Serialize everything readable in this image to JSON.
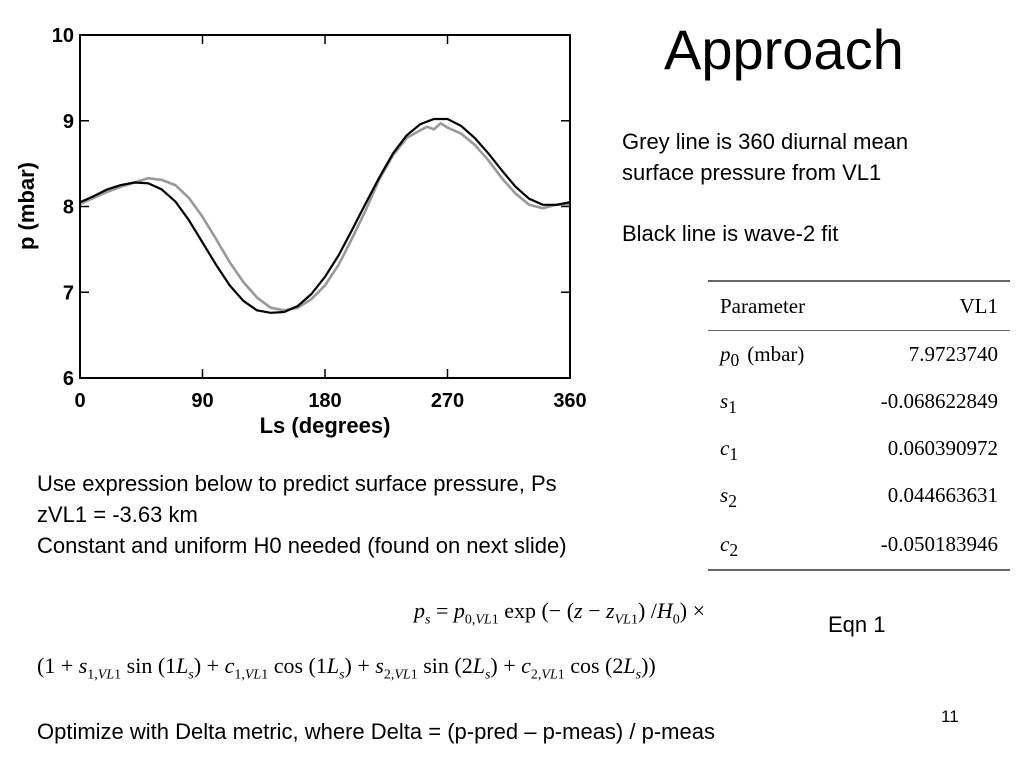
{
  "title": "Approach",
  "notes": {
    "grey": [
      "Grey line is 360 diurnal mean",
      "surface pressure from VL1"
    ],
    "black": "Black line is wave-2 fit"
  },
  "chart_data": {
    "type": "line",
    "xlabel": "Ls (degrees)",
    "ylabel": "p (mbar)",
    "xlim": [
      0,
      360
    ],
    "ylim": [
      6,
      10
    ],
    "xticks": [
      0,
      90,
      180,
      270,
      360
    ],
    "yticks": [
      6,
      7,
      8,
      9,
      10
    ],
    "series": [
      {
        "color": "#999999",
        "x": [
          0,
          10,
          20,
          30,
          40,
          50,
          60,
          70,
          80,
          90,
          100,
          110,
          120,
          130,
          140,
          150,
          160,
          170,
          180,
          190,
          200,
          210,
          220,
          230,
          240,
          250,
          255,
          260,
          265,
          270,
          280,
          290,
          300,
          310,
          320,
          330,
          340,
          350,
          360
        ],
        "y": [
          8.03,
          8.1,
          8.17,
          8.23,
          8.28,
          8.33,
          8.31,
          8.25,
          8.1,
          7.88,
          7.62,
          7.35,
          7.12,
          6.94,
          6.82,
          6.79,
          6.82,
          6.92,
          7.08,
          7.32,
          7.63,
          7.96,
          8.32,
          8.6,
          8.8,
          8.89,
          8.93,
          8.9,
          8.97,
          8.92,
          8.85,
          8.72,
          8.54,
          8.33,
          8.15,
          8.02,
          7.98,
          8.02,
          8.03
        ]
      },
      {
        "color": "#000000",
        "x": [
          0,
          10,
          20,
          30,
          40,
          50,
          60,
          70,
          80,
          90,
          100,
          110,
          120,
          130,
          140,
          150,
          160,
          170,
          180,
          190,
          200,
          210,
          220,
          230,
          240,
          250,
          260,
          270,
          280,
          290,
          300,
          310,
          320,
          330,
          340,
          350,
          360
        ],
        "y": [
          8.05,
          8.12,
          8.2,
          8.25,
          8.28,
          8.27,
          8.2,
          8.06,
          7.84,
          7.58,
          7.32,
          7.08,
          6.9,
          6.79,
          6.76,
          6.77,
          6.84,
          6.98,
          7.18,
          7.43,
          7.73,
          8.04,
          8.34,
          8.62,
          8.83,
          8.96,
          9.02,
          9.02,
          8.94,
          8.8,
          8.62,
          8.42,
          8.23,
          8.09,
          8.02,
          8.02,
          8.05
        ]
      }
    ]
  },
  "text_block": [
    "Use expression below to predict surface pressure, Ps",
    "zVL1 = -3.63 km",
    "Constant and uniform H0 needed (found on next slide)"
  ],
  "table": {
    "headers": [
      "Parameter",
      "VL1"
    ],
    "rows": [
      {
        "sym": "p",
        "sub": "0",
        "unit": "(mbar)",
        "value": "7.9723740"
      },
      {
        "sym": "s",
        "sub": "1",
        "unit": "",
        "value": "-0.068622849"
      },
      {
        "sym": "c",
        "sub": "1",
        "unit": "",
        "value": "0.060390972"
      },
      {
        "sym": "s",
        "sub": "2",
        "unit": "",
        "value": "0.044663631"
      },
      {
        "sym": "c",
        "sub": "2",
        "unit": "",
        "value": "-0.050183946"
      }
    ]
  },
  "equation_label": "Eqn 1",
  "bottom_text": "Optimize with Delta metric, where Delta = (p-pred – p-meas) / p-meas",
  "slide_number": "11"
}
